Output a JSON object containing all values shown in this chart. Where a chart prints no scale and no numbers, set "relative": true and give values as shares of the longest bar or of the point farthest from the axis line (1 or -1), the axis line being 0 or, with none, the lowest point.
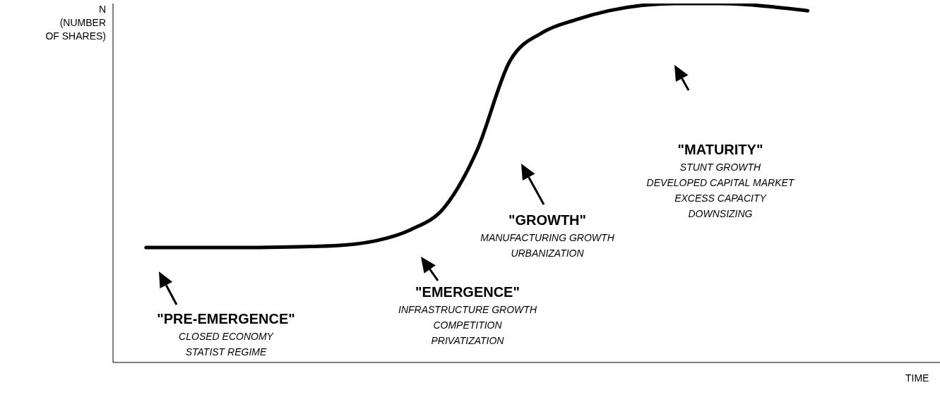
{
  "chart_data": {
    "type": "line",
    "relative": true,
    "xlabel": "TIME",
    "ylabel": "N\n(NUMBER\nOF SHARES)",
    "categories": [
      null,
      null,
      null,
      null,
      null,
      null,
      null,
      null,
      null,
      null,
      null,
      null,
      null,
      null,
      null,
      null,
      null,
      null,
      null,
      null,
      null,
      null,
      null,
      null,
      null,
      null
    ],
    "series": [
      {
        "color": "#000000",
        "values": [
          null,
          0.32,
          0.32,
          0.32,
          0.32,
          0.321,
          0.323,
          0.327,
          0.34,
          0.37,
          0.43,
          0.59,
          0.84,
          0.92,
          0.955,
          0.98,
          0.995,
          1,
          1,
          0.998,
          0.99,
          0.98,
          null,
          null,
          null,
          null
        ]
      }
    ],
    "annotations": [
      "\"PRE-EMERGENCE\"\nCLOSED ECONOMY\nSTATIST REGIME",
      "\"EMERGENCE\"\nINFRASTRUCTURE GROWTH\nCOMPETITION\nPRIVATIZATION",
      "\"GROWTH\"\nMANUFACTURING GROWTH\nURBANIZATION",
      "\"MATURITY\"\nSTUNT GROWTH\nDEVELOPED CAPITAL MARKET\nEXCESS CAPACITY\nDOWNSIZING"
    ],
    "marker": "none",
    "line_style": "solid",
    "legend": false,
    "grid": false
  }
}
